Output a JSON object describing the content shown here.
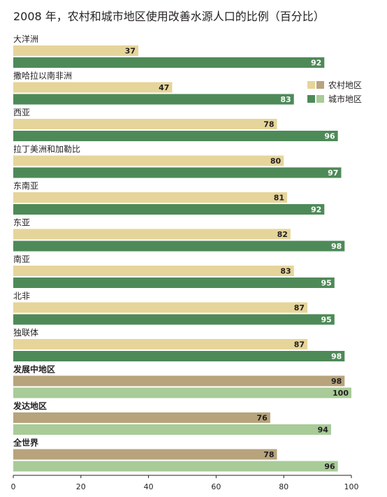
{
  "chart_data": {
    "type": "bar",
    "orientation": "horizontal",
    "title": "2008 年，农村和城市地区使用改善水源人口的比例（百分比）",
    "categories": [
      "大洋洲",
      "撒哈拉以南非洲",
      "西亚",
      "拉丁美洲和加勒比",
      "东南亚",
      "东亚",
      "南亚",
      "北非",
      "独联体",
      "发展中地区",
      "发达地区",
      "全世界"
    ],
    "aggregate_categories": [
      "发展中地区",
      "发达地区",
      "全世界"
    ],
    "series": [
      {
        "name": "农村地区",
        "values": [
          37,
          47,
          78,
          80,
          81,
          82,
          83,
          87,
          87,
          98,
          76,
          78
        ]
      },
      {
        "name": "城市地区",
        "values": [
          92,
          83,
          96,
          97,
          92,
          98,
          95,
          95,
          98,
          100,
          94,
          96
        ]
      }
    ],
    "xlim": [
      0,
      100
    ],
    "xticks": [
      "0",
      "20",
      "40",
      "60",
      "80",
      "100"
    ],
    "grid": false,
    "legend_position": "right, below second group",
    "colors": {
      "rural": "#e6d59a",
      "urban": "#4e8a58",
      "rural_aggregate": "#b7a47c",
      "urban_aggregate": "#a8cb98",
      "rural_label": "#231f20",
      "urban_label": "#ffffff",
      "axis": "#231f20"
    }
  }
}
